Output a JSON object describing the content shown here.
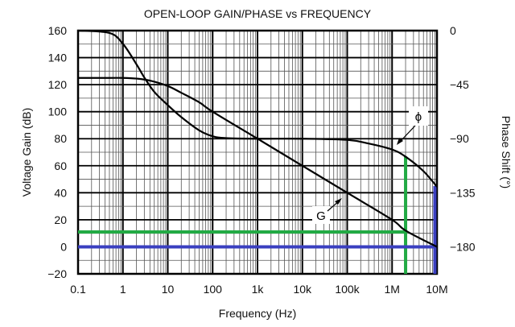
{
  "chart_data": {
    "type": "line",
    "title": "OPEN-LOOP GAIN/PHASE vs FREQUENCY",
    "xlabel": "Frequency (Hz)",
    "ylabel": "Voltage Gain (dB)",
    "y2label": "Phase Shift (°)",
    "xscale": "log",
    "xlim": [
      0.1,
      10000000
    ],
    "ylim": [
      -20,
      160
    ],
    "y2lim": [
      -202.5,
      0
    ],
    "grid": true,
    "x_ticks": [
      {
        "value": 0.1,
        "label": "0.1"
      },
      {
        "value": 1,
        "label": "1"
      },
      {
        "value": 10,
        "label": "10"
      },
      {
        "value": 100,
        "label": "100"
      },
      {
        "value": 1000,
        "label": "1k"
      },
      {
        "value": 10000,
        "label": "10k"
      },
      {
        "value": 100000,
        "label": "100k"
      },
      {
        "value": 1000000,
        "label": "1M"
      },
      {
        "value": 10000000,
        "label": "10M"
      }
    ],
    "y_ticks": [
      {
        "value": 160,
        "label": "160"
      },
      {
        "value": 140,
        "label": "140"
      },
      {
        "value": 120,
        "label": "120"
      },
      {
        "value": 100,
        "label": "100"
      },
      {
        "value": 80,
        "label": "80"
      },
      {
        "value": 60,
        "label": "60"
      },
      {
        "value": 40,
        "label": "40"
      },
      {
        "value": 20,
        "label": "20"
      },
      {
        "value": 0,
        "label": "0"
      },
      {
        "value": -20,
        "label": "−20"
      }
    ],
    "y2_ticks": [
      {
        "value": 0,
        "label": "0"
      },
      {
        "value": -45,
        "label": "−45"
      },
      {
        "value": -90,
        "label": "−90"
      },
      {
        "value": -135,
        "label": "−135"
      },
      {
        "value": -180,
        "label": "−180"
      }
    ],
    "series": [
      {
        "name": "G",
        "label": "G",
        "axis": "left",
        "color": "#000000",
        "x": [
          0.1,
          0.5,
          1,
          2,
          4,
          10,
          20,
          50,
          100,
          1000,
          10000,
          100000,
          1000000,
          2000000,
          10000000
        ],
        "y": [
          125,
          125,
          125,
          124.5,
          123,
          119,
          114,
          107,
          100,
          80,
          60,
          40,
          20,
          12,
          0
        ]
      },
      {
        "name": "phase",
        "label": "ϕ",
        "axis": "right",
        "color": "#000000",
        "x": [
          0.1,
          0.5,
          1,
          2,
          3,
          5,
          10,
          20,
          50,
          100,
          200,
          1000,
          10000,
          100000,
          300000,
          1000000,
          2000000,
          5000000,
          10000000
        ],
        "y": [
          0,
          -2,
          -11,
          -28,
          -39,
          -51,
          -62,
          -72,
          -83,
          -88,
          -89.5,
          -90,
          -90,
          -91,
          -94,
          -99,
          -105,
          -117,
          -130
        ]
      }
    ],
    "annotations": [
      {
        "type": "hline",
        "color": "#22aa44",
        "y_db": 11,
        "x_to": 2000000
      },
      {
        "type": "vline",
        "color": "#22aa44",
        "x": 2000000,
        "y_db_from": -20,
        "y_db_to": 67
      },
      {
        "type": "hline",
        "color": "#3a3fc0",
        "y_db": 0,
        "x_to": 9000000
      },
      {
        "type": "vline",
        "color": "#3a3fc0",
        "x": 9000000,
        "y_db_from": -20,
        "y_db_to": 45
      }
    ]
  }
}
